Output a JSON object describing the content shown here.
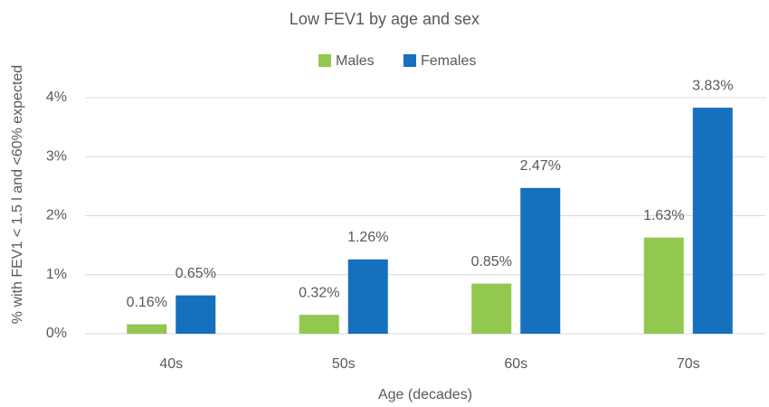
{
  "chart_data": {
    "type": "bar",
    "title": "Low FEV1 by age and sex",
    "xlabel": "Age (decades)",
    "ylabel": "% with FEV1 < 1.5 l and <60% expected",
    "categories": [
      "40s",
      "50s",
      "60s",
      "70s"
    ],
    "series": [
      {
        "name": "Males",
        "color": "#92c84f",
        "values": [
          0.16,
          0.32,
          0.85,
          1.63
        ],
        "value_labels": [
          "0.16%",
          "0.32%",
          "0.85%",
          "1.63%"
        ]
      },
      {
        "name": "Females",
        "color": "#1570be",
        "values": [
          0.65,
          1.26,
          2.47,
          3.83
        ],
        "value_labels": [
          "0.65%",
          "1.26%",
          "2.47%",
          "3.83%"
        ]
      }
    ],
    "ylim": [
      0,
      4
    ],
    "yticks": [
      {
        "value": 0,
        "label": "0%"
      },
      {
        "value": 1,
        "label": "1%"
      },
      {
        "value": 2,
        "label": "2%"
      },
      {
        "value": 3,
        "label": "3%"
      },
      {
        "value": 4,
        "label": "4%"
      }
    ],
    "grid": true,
    "legend": "top"
  }
}
